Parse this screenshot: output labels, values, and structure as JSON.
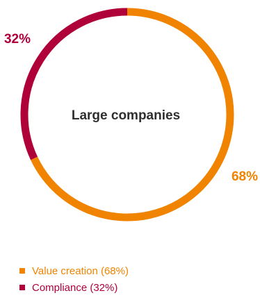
{
  "chart_data": {
    "type": "pie",
    "variant": "donut",
    "title": "Large companies",
    "slices": [
      {
        "label": "Value creation (68%)",
        "value": 68,
        "display_value": "68%",
        "color": "#F08300"
      },
      {
        "label": "Compliance (32%)",
        "value": 32,
        "display_value": "32%",
        "color": "#B0003A"
      }
    ],
    "legend_position": "bottom-left"
  }
}
